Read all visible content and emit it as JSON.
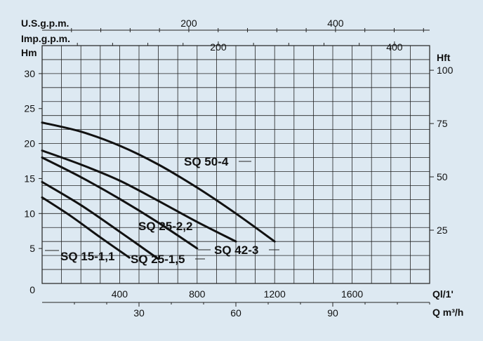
{
  "chart_data": {
    "type": "line",
    "title": "",
    "x_axes": {
      "q_l_per_min": {
        "label": "Ql/1'",
        "range": [
          0,
          2000
        ],
        "ticks": [
          400,
          800,
          1200,
          1600
        ],
        "tick_labels": [
          "400",
          "800",
          "1200",
          "1600"
        ],
        "minor_step": 100
      },
      "q_m3h": {
        "label": "Q m³/h",
        "range": [
          0,
          120
        ],
        "ticks": [
          30,
          60,
          90
        ],
        "tick_labels": [
          "30",
          "60",
          "90"
        ],
        "minor_step": 10
      },
      "us_gpm": {
        "label": "U.S.g.p.m.",
        "range": [
          0,
          528
        ],
        "ticks": [
          200,
          400
        ],
        "tick_labels": [
          "200",
          "400"
        ],
        "minor_step": 40
      },
      "imp_gpm": {
        "label": "Imp.g.p.m.",
        "range": [
          0,
          440
        ],
        "ticks": [
          200,
          400
        ],
        "tick_labels": [
          "200",
          "400"
        ],
        "minor_step": 40
      }
    },
    "y_axes": {
      "head_m": {
        "label": "Hm",
        "range": [
          0,
          34
        ],
        "ticks": [
          0,
          5,
          10,
          15,
          20,
          25,
          30
        ],
        "tick_labels": [
          "0",
          "5",
          "10",
          "15",
          "20",
          "25",
          "30"
        ]
      },
      "head_ft": {
        "label": "Hft",
        "ticks": [
          25,
          50,
          75,
          100
        ],
        "tick_labels": [
          "25",
          "50",
          "75",
          "100"
        ]
      }
    },
    "grid": true,
    "series": [
      {
        "name": "SQ 50-4",
        "x_unit": "l/min",
        "y_unit": "m",
        "x": [
          0,
          200,
          400,
          600,
          800,
          1000,
          1200
        ],
        "y": [
          23.0,
          21.7,
          19.7,
          17.0,
          13.7,
          10.0,
          6.0
        ]
      },
      {
        "name": "SQ 42-3",
        "x_unit": "l/min",
        "y_unit": "m",
        "x": [
          0,
          200,
          400,
          600,
          800,
          1000
        ],
        "y": [
          19.0,
          17.0,
          14.7,
          11.8,
          8.8,
          6.0
        ]
      },
      {
        "name": "SQ 25-2,2",
        "x_unit": "l/min",
        "y_unit": "m",
        "x": [
          0,
          200,
          400,
          600,
          800
        ],
        "y": [
          18.0,
          15.2,
          12.1,
          8.7,
          5.0
        ]
      },
      {
        "name": "SQ 25-1,5",
        "x_unit": "l/min",
        "y_unit": "m",
        "x": [
          0,
          200,
          400,
          600
        ],
        "y": [
          14.5,
          11.2,
          7.4,
          3.5
        ]
      },
      {
        "name": "SQ 15-1,1",
        "x_unit": "l/min",
        "y_unit": "m",
        "x": [
          0,
          150,
          300,
          450
        ],
        "y": [
          12.3,
          9.6,
          6.6,
          3.7
        ]
      }
    ]
  }
}
